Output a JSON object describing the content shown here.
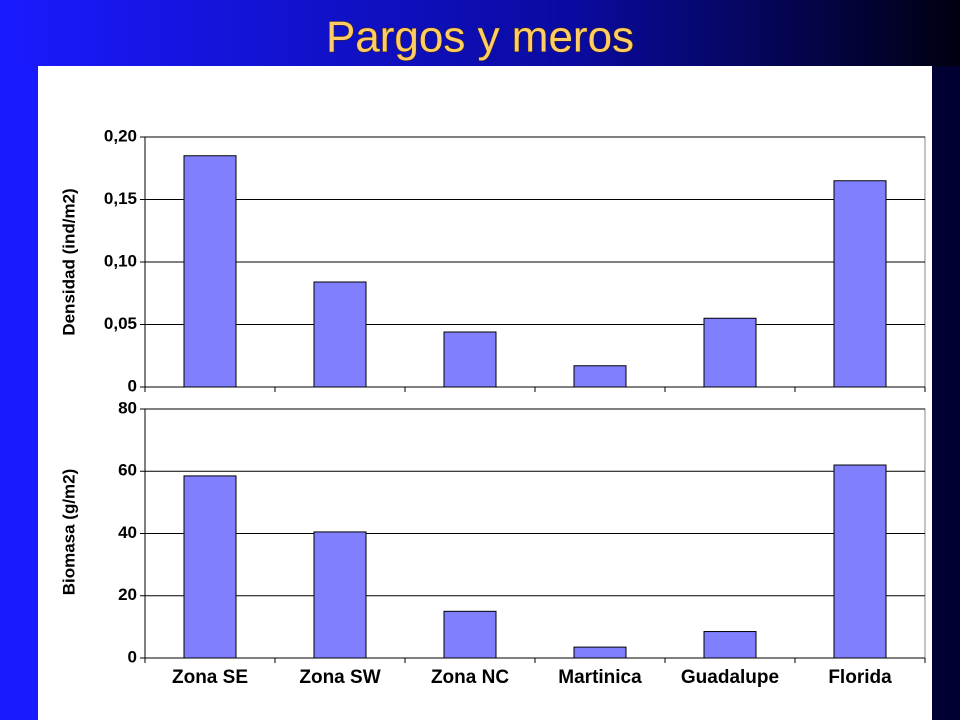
{
  "title": "Pargos y meros",
  "chart_data": [
    {
      "type": "bar",
      "ylabel": "Densidad (ind/m2)",
      "categories": [
        null,
        null,
        null,
        null,
        null,
        null
      ],
      "values": [
        0.185,
        0.084,
        0.044,
        0.017,
        0.055,
        0.165
      ],
      "color": "#8080ff",
      "ylim": [
        0,
        0.2
      ],
      "yticks": [
        0,
        {
          "value": 0.05,
          "label": "0,05"
        },
        {
          "value": 0.1,
          "label": "0,10"
        },
        {
          "value": 0.15,
          "label": "0,15"
        },
        {
          "value": 0.2,
          "label": "0,20"
        }
      ],
      "grid": true
    },
    {
      "type": "bar",
      "ylabel": "Biomasa (g/m2)",
      "categories": [
        "Zona SE",
        "Zona SW",
        "Zona NC",
        "Martinica",
        "Guadalupe",
        "Florida"
      ],
      "values": [
        58.5,
        40.5,
        15,
        3.5,
        8.5,
        62
      ],
      "color": "#8080ff",
      "ylim": [
        0,
        80
      ],
      "yticks": [
        0,
        20,
        40,
        60,
        80
      ],
      "grid": true
    }
  ]
}
